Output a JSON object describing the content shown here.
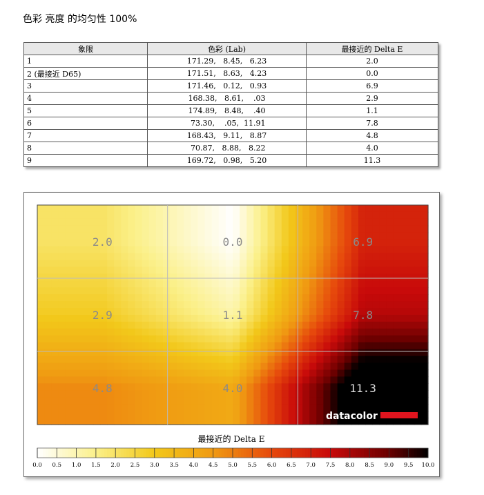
{
  "page_title": "色彩 亮度 的均匀性 100%",
  "table": {
    "headers": [
      "象限",
      "色彩 (Lab)",
      "最接近的 Delta E"
    ],
    "rows": [
      {
        "quadrant": "1",
        "lab": "171.29,   8.45,   6.23",
        "delta_e": "2.0"
      },
      {
        "quadrant": "2 (最接近 D65)",
        "lab": "171.51,   8.63,   4.23",
        "delta_e": "0.0"
      },
      {
        "quadrant": "3",
        "lab": "171.46,   0.12,   0.93",
        "delta_e": "6.9"
      },
      {
        "quadrant": "4",
        "lab": "168.38,   8.61,    .03",
        "delta_e": "2.9"
      },
      {
        "quadrant": "5",
        "lab": "174.89,   8.48,    .40",
        "delta_e": "1.1"
      },
      {
        "quadrant": "6",
        "lab": " 73.30,    .05,  11.91",
        "delta_e": "7.8"
      },
      {
        "quadrant": "7",
        "lab": "168.43,   9.11,   8.87",
        "delta_e": "4.8"
      },
      {
        "quadrant": "8",
        "lab": " 70.87,   8.88,   8.22",
        "delta_e": "4.0"
      },
      {
        "quadrant": "9",
        "lab": "169.72,   0.98,   5.20",
        "delta_e": "11.3"
      }
    ]
  },
  "chart_data": {
    "type": "heatmap",
    "grid": {
      "rows": 3,
      "cols": 3
    },
    "values": [
      [
        2.0,
        0.0,
        6.9
      ],
      [
        2.9,
        1.1,
        7.8
      ],
      [
        4.8,
        4.0,
        11.3
      ]
    ],
    "labels": [
      [
        "2.0",
        "0.0",
        "6.9"
      ],
      [
        "2.9",
        "1.1",
        "7.8"
      ],
      [
        "4.8",
        "4.0",
        "11.3"
      ]
    ],
    "colorbar": {
      "title": "最接近的 Delta E",
      "range": [
        0,
        10
      ],
      "ticks": [
        "0.0",
        "0.5",
        "1.0",
        "1.5",
        "2.0",
        "2.5",
        "3.0",
        "3.5",
        "4.0",
        "4.5",
        "5.0",
        "5.5",
        "6.0",
        "6.5",
        "7.0",
        "7.5",
        "8.0",
        "8.5",
        "9.0",
        "9.5",
        "10.0"
      ]
    },
    "stops": [
      {
        "v": 0,
        "color": "#ffffff"
      },
      {
        "v": 1.5,
        "color": "#fbf08a"
      },
      {
        "v": 3,
        "color": "#f2c81a"
      },
      {
        "v": 4.5,
        "color": "#f09a12"
      },
      {
        "v": 6,
        "color": "#e6480c"
      },
      {
        "v": 7.5,
        "color": "#c80a0a"
      },
      {
        "v": 9,
        "color": "#6a0000"
      },
      {
        "v": 10,
        "color": "#000000"
      }
    ],
    "logo": "datacolor"
  }
}
